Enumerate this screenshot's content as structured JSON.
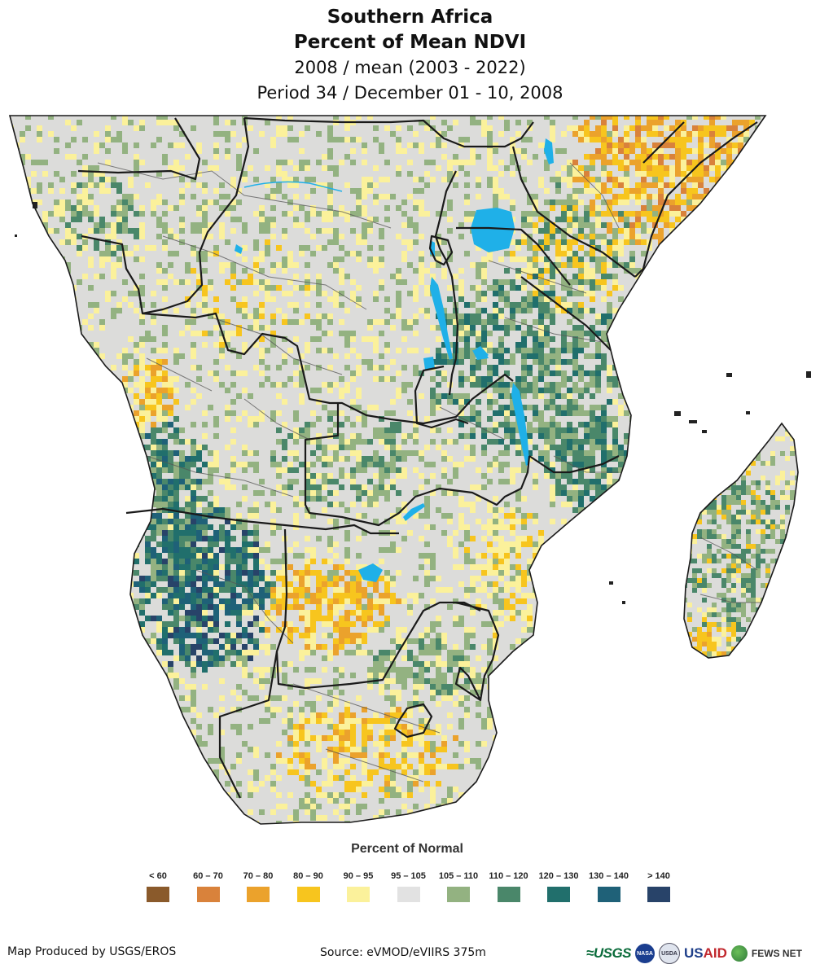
{
  "header": {
    "title_line1": "Southern Africa",
    "title_line2": "Percent of Mean NDVI",
    "subtitle_line1": "2008 / mean (2003 - 2022)",
    "subtitle_line2": "Period 34 / December 01 - 10, 2008"
  },
  "map": {
    "land_base_color": "#dcdcda",
    "water_color": "#1fb0e8",
    "border_color": "#1a1a1a",
    "admin_border_color": "#555555"
  },
  "legend": {
    "title": "Percent of Normal",
    "classes": [
      {
        "label": "< 60",
        "color": "#8a5a2b"
      },
      {
        "label": "60 – 70",
        "color": "#d9823b"
      },
      {
        "label": "70 – 80",
        "color": "#eba22c"
      },
      {
        "label": "80 – 90",
        "color": "#f7c51e"
      },
      {
        "label": "90 – 95",
        "color": "#fbf19b"
      },
      {
        "label": "95 – 105",
        "color": "#e2e2e2"
      },
      {
        "label": "105 – 110",
        "color": "#93b281"
      },
      {
        "label": "110 – 120",
        "color": "#4a876a"
      },
      {
        "label": "120 – 130",
        "color": "#216f6c"
      },
      {
        "label": "130 – 140",
        "color": "#1f6178"
      },
      {
        "label": "> 140",
        "color": "#284369"
      }
    ]
  },
  "footer": {
    "produced_by": "Map Produced by USGS/EROS",
    "source": "Source: eVMOD/eVIIRS 375m",
    "logo_usgs": "≈USGS",
    "logo_nasa": "NASA",
    "logo_seal": "USDA",
    "logo_usaid_a": "US",
    "logo_usaid_b": "AID",
    "logo_fews": "FEWS NET"
  }
}
